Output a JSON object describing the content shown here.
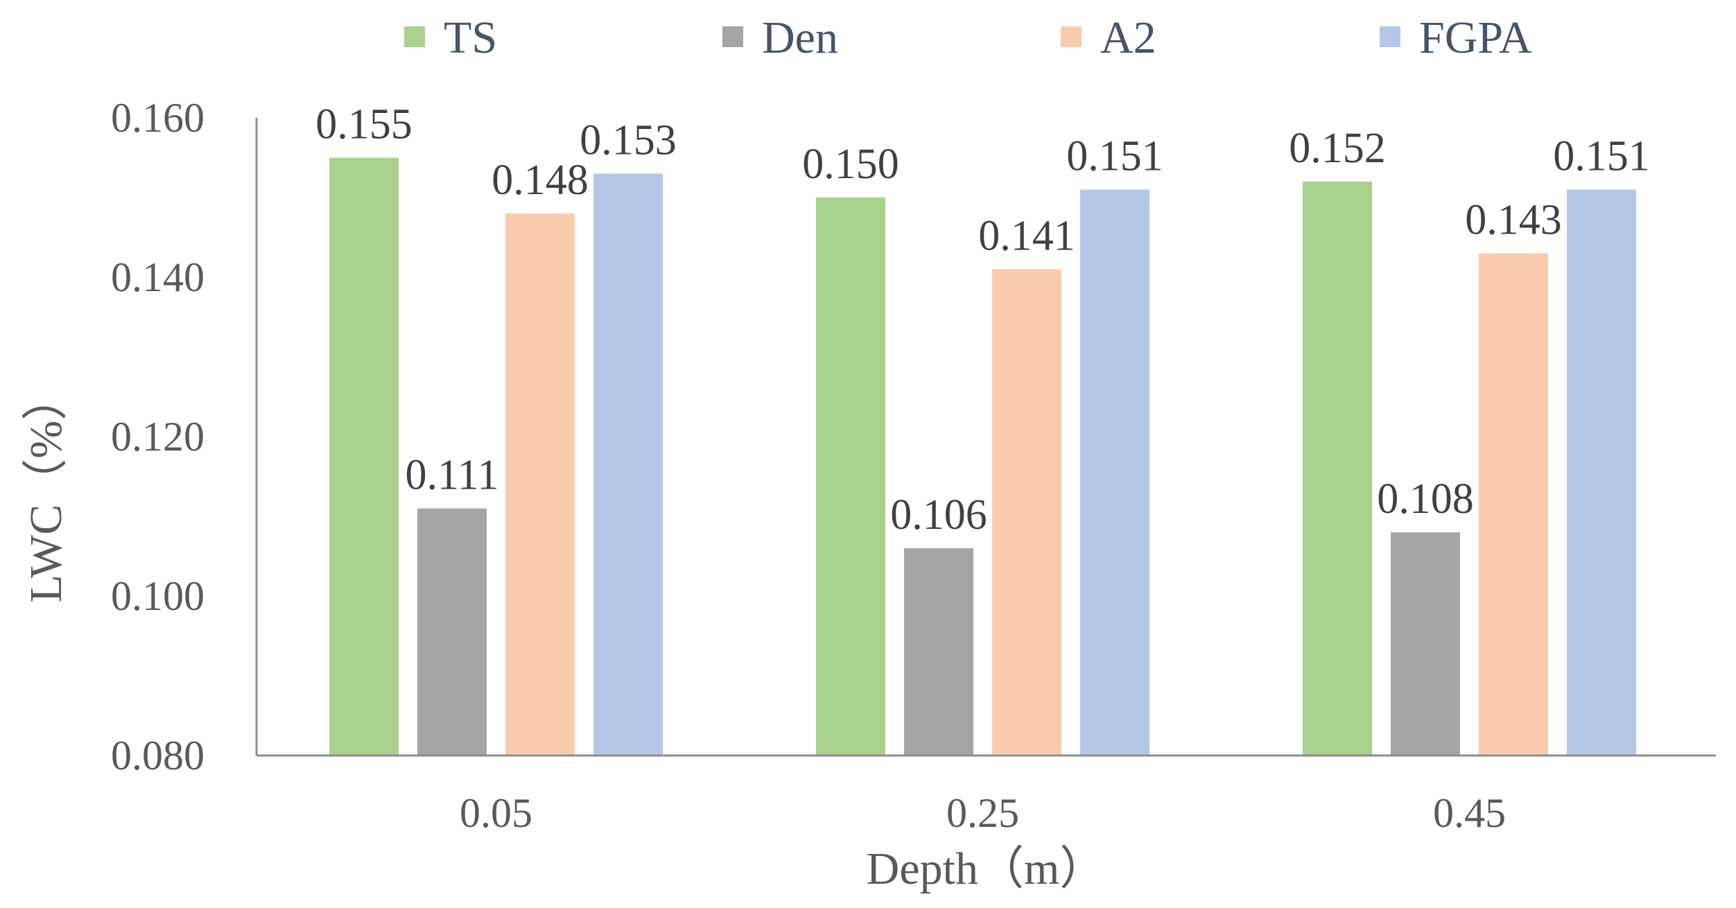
{
  "chart_data": {
    "type": "bar",
    "title": "",
    "xlabel": "Depth（m）",
    "ylabel": "LWC（%）",
    "categories": [
      "0.05",
      "0.25",
      "0.45"
    ],
    "series": [
      {
        "name": "TS",
        "color": "#A9D18E",
        "values": [
          0.155,
          0.15,
          0.152
        ],
        "labels": [
          "0.155",
          "0.150",
          "0.152"
        ]
      },
      {
        "name": "Den",
        "color": "#A5A5A5",
        "values": [
          0.111,
          0.106,
          0.108
        ],
        "labels": [
          "0.111",
          "0.106",
          "0.108"
        ]
      },
      {
        "name": "A2",
        "color": "#F8CBAD",
        "values": [
          0.148,
          0.141,
          0.143
        ],
        "labels": [
          "0.148",
          "0.141",
          "0.143"
        ]
      },
      {
        "name": "FGPA",
        "color": "#B4C7E7",
        "values": [
          0.153,
          0.151,
          0.151
        ],
        "labels": [
          "0.153",
          "0.151",
          "0.151"
        ]
      }
    ],
    "ylim": [
      0.08,
      0.16
    ],
    "yticks": [
      "0.080",
      "0.100",
      "0.120",
      "0.140",
      "0.160"
    ],
    "grid": false,
    "legend_position": "top"
  }
}
